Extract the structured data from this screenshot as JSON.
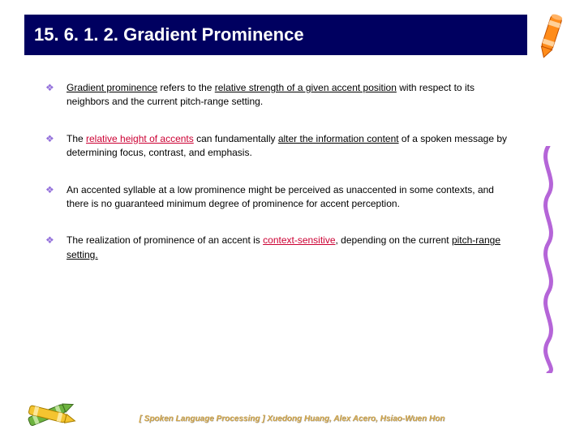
{
  "title": "15. 6. 1. 2. Gradient Prominence",
  "bullets": [
    {
      "segments": [
        {
          "text": "Gradient prominence",
          "underline": true,
          "red": false
        },
        {
          "text": " refers to the ",
          "underline": false,
          "red": false
        },
        {
          "text": "relative strength of a given accent position",
          "underline": true,
          "red": false
        },
        {
          "text": " with respect to its neighbors and the current pitch-range setting.",
          "underline": false,
          "red": false
        }
      ]
    },
    {
      "segments": [
        {
          "text": "The ",
          "underline": false,
          "red": false
        },
        {
          "text": "relative height of accents",
          "underline": true,
          "red": true
        },
        {
          "text": " can fundamentally ",
          "underline": false,
          "red": false
        },
        {
          "text": "alter the information content",
          "underline": true,
          "red": false
        },
        {
          "text": " of a spoken message by determining focus, contrast, and emphasis.",
          "underline": false,
          "red": false
        }
      ]
    },
    {
      "segments": [
        {
          "text": "An accented syllable at a low prominence might be perceived as unaccented in some contexts, and there is no guaranteed minimum degree of prominence for accent perception.",
          "underline": false,
          "red": false
        }
      ]
    },
    {
      "segments": [
        {
          "text": "The realization of prominence of an accent is ",
          "underline": false,
          "red": false
        },
        {
          "text": "context-sensitive",
          "underline": true,
          "red": true
        },
        {
          "text": ", depending on the current ",
          "underline": false,
          "red": false
        },
        {
          "text": "pitch-range setting.",
          "underline": true,
          "red": false
        }
      ]
    }
  ],
  "footer": "[ Spoken Language Processing ]  Xuedong Huang, Alex Acero, Hsiao-Wuen Hon",
  "colors": {
    "title_bg": "#000060",
    "title_fg": "#ffffff",
    "bullet_diamond": "#9370DB",
    "red_text": "#cc0033",
    "footer_color": "#d4a84b",
    "crayon_orange": "#ff8c1a",
    "crayon_green": "#6db33f",
    "crayon_yellow": "#f4c430",
    "squiggle_purple": "#b565d8"
  }
}
